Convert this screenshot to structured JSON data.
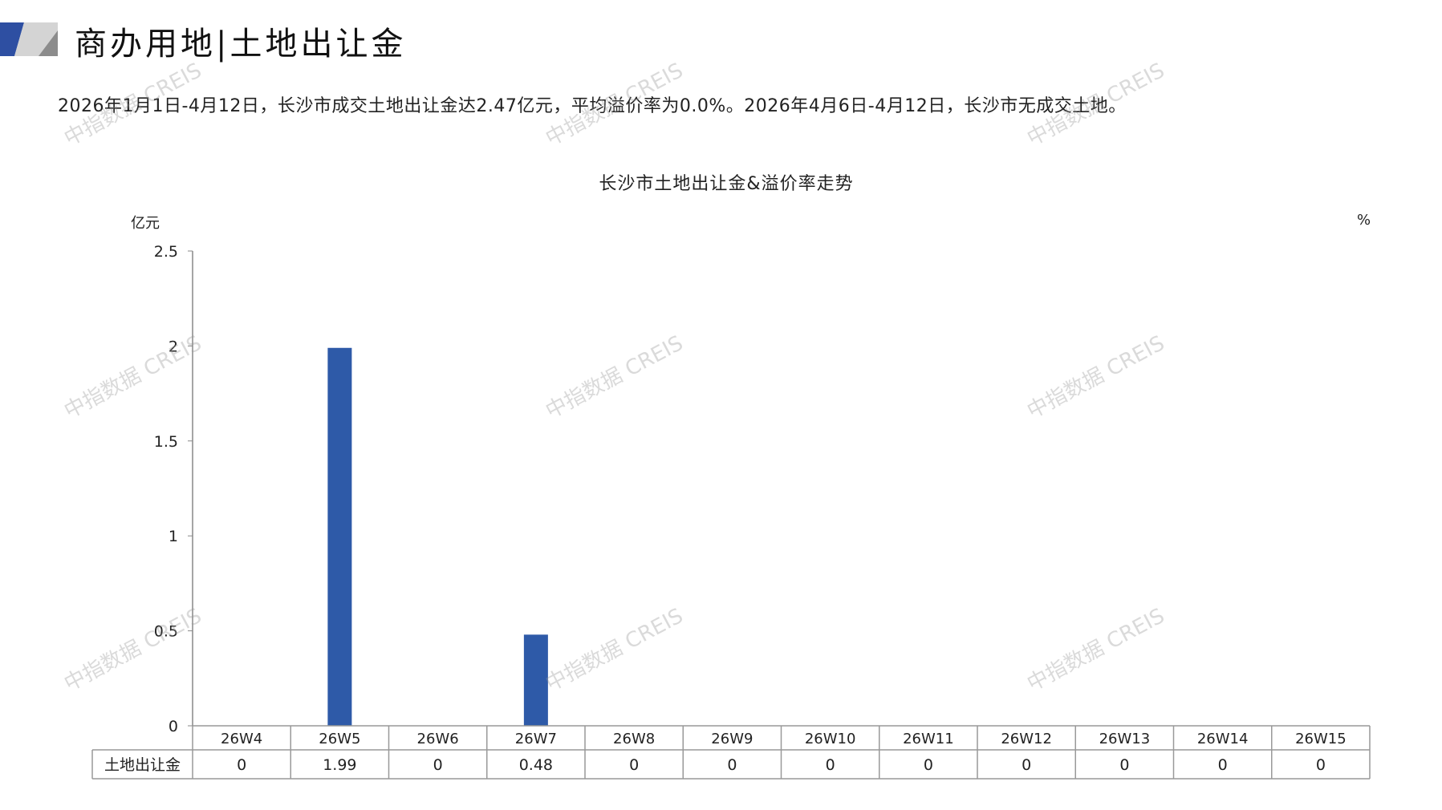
{
  "header": {
    "title": "商办用地|土地出让金",
    "logo_colors": [
      "#2E4FA2",
      "#C8C8C8",
      "#8C8C8C"
    ]
  },
  "summary": "2026年1月1日-4月12日，长沙市成交土地出让金达2.47亿元，平均溢价率为0.0%。2026年4月6日-4月12日，长沙市无成交土地。",
  "watermark": "中指数据 CREIS",
  "chart_data": {
    "type": "bar",
    "title": "长沙市土地出让金&溢价率走势",
    "ylabel": "亿元",
    "y2label": "%",
    "ylim": [
      0,
      2.5
    ],
    "yticks": [
      "0",
      "0.5",
      "1",
      "1.5",
      "2",
      "2.5"
    ],
    "categories": [
      "26W4",
      "26W5",
      "26W6",
      "26W7",
      "26W8",
      "26W9",
      "26W10",
      "26W11",
      "26W12",
      "26W13",
      "26W14",
      "26W15"
    ],
    "series": [
      {
        "name": "土地出让金",
        "values": [
          0,
          1.99,
          0,
          0.48,
          0,
          0,
          0,
          0,
          0,
          0,
          0,
          0
        ],
        "labels": [
          "0",
          "1.99",
          "0",
          "0.48",
          "0",
          "0",
          "0",
          "0",
          "0",
          "0",
          "0",
          "0"
        ],
        "color": "#2E5AA8"
      }
    ],
    "grid": false,
    "data_table": true
  }
}
